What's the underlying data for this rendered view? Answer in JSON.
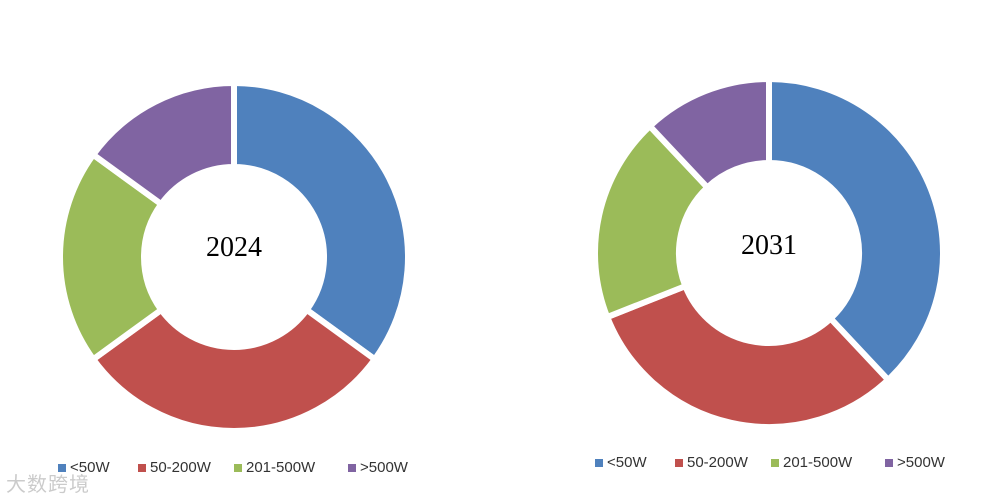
{
  "colors": {
    "<50W": "#4F81BD",
    "50-200W": "#C0504D",
    "201-500W": "#9BBB59",
    ">500W": "#8064A2"
  },
  "chart_data": [
    {
      "type": "pie",
      "variant": "donut",
      "center_label": "2024",
      "categories": [
        "<50W",
        "50-200W",
        "201-500W",
        ">500W"
      ],
      "values": [
        35,
        30,
        20,
        15
      ],
      "legend": "bottom"
    },
    {
      "type": "pie",
      "variant": "donut",
      "center_label": "2031",
      "categories": [
        "<50W",
        "50-200W",
        "201-500W",
        ">500W"
      ],
      "values": [
        38,
        31,
        19,
        12
      ],
      "legend": "bottom"
    }
  ],
  "watermark": "大数跨境"
}
